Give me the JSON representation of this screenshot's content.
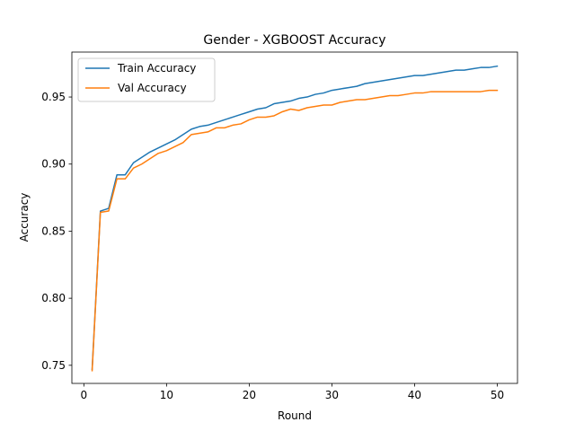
{
  "chart_data": {
    "type": "line",
    "title": "Gender - XGBOOST Accuracy",
    "xlabel": "Round",
    "ylabel": "Accuracy",
    "xlim": [
      -1.45,
      52.45
    ],
    "ylim": [
      0.7365,
      0.9835
    ],
    "x_ticks": [
      0,
      10,
      20,
      30,
      40,
      50
    ],
    "y_ticks": [
      0.75,
      0.8,
      0.85,
      0.9,
      0.95
    ],
    "y_tick_labels": [
      "0.75",
      "0.80",
      "0.85",
      "0.90",
      "0.95"
    ],
    "grid": false,
    "legend_position": "top-left",
    "x": [
      1,
      2,
      3,
      4,
      5,
      6,
      7,
      8,
      9,
      10,
      11,
      12,
      13,
      14,
      15,
      16,
      17,
      18,
      19,
      20,
      21,
      22,
      23,
      24,
      25,
      26,
      27,
      28,
      29,
      30,
      31,
      32,
      33,
      34,
      35,
      36,
      37,
      38,
      39,
      40,
      41,
      42,
      43,
      44,
      45,
      46,
      47,
      48,
      49,
      50
    ],
    "series": [
      {
        "name": "Train Accuracy",
        "color": "#1f77b4",
        "values": [
          0.747,
          0.865,
          0.867,
          0.892,
          0.892,
          0.901,
          0.905,
          0.909,
          0.912,
          0.915,
          0.918,
          0.922,
          0.926,
          0.928,
          0.929,
          0.931,
          0.933,
          0.935,
          0.937,
          0.939,
          0.941,
          0.942,
          0.945,
          0.946,
          0.947,
          0.949,
          0.95,
          0.952,
          0.953,
          0.955,
          0.956,
          0.957,
          0.958,
          0.96,
          0.961,
          0.962,
          0.963,
          0.964,
          0.965,
          0.966,
          0.966,
          0.967,
          0.968,
          0.969,
          0.97,
          0.97,
          0.971,
          0.972,
          0.972,
          0.973
        ]
      },
      {
        "name": "Val Accuracy",
        "color": "#ff7f0e",
        "values": [
          0.746,
          0.864,
          0.865,
          0.889,
          0.889,
          0.897,
          0.9,
          0.904,
          0.908,
          0.91,
          0.913,
          0.916,
          0.922,
          0.923,
          0.924,
          0.927,
          0.927,
          0.929,
          0.93,
          0.933,
          0.935,
          0.935,
          0.936,
          0.939,
          0.941,
          0.94,
          0.942,
          0.943,
          0.944,
          0.944,
          0.946,
          0.947,
          0.948,
          0.948,
          0.949,
          0.95,
          0.951,
          0.951,
          0.952,
          0.953,
          0.953,
          0.954,
          0.954,
          0.954,
          0.954,
          0.954,
          0.954,
          0.954,
          0.955,
          0.955
        ]
      }
    ]
  }
}
